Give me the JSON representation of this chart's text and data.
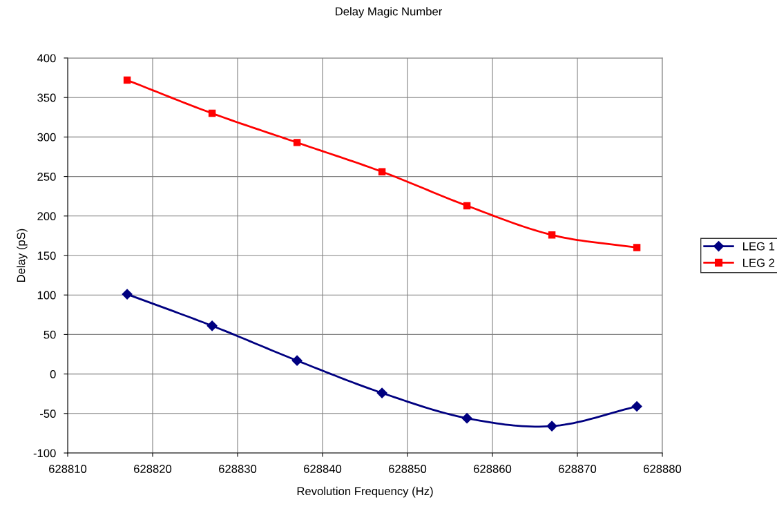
{
  "chart_data": {
    "type": "line",
    "title": "Delay Magic Number",
    "xlabel": "Revolution Frequency (Hz)",
    "ylabel": "Delay (pS)",
    "x": [
      628817,
      628827,
      628837,
      628847,
      628857,
      628867,
      628877
    ],
    "series": [
      {
        "name": "LEG 1",
        "color": "#000080",
        "marker": "diamond",
        "values": [
          101,
          61,
          17,
          -24,
          -56,
          -66,
          -41
        ]
      },
      {
        "name": "LEG 2",
        "color": "#ff0000",
        "marker": "square",
        "values": [
          372,
          330,
          293,
          256,
          213,
          176,
          160
        ]
      }
    ],
    "xlim": [
      628810,
      628880
    ],
    "xticks": [
      628810,
      628820,
      628830,
      628840,
      628850,
      628860,
      628870,
      628880
    ],
    "ylim": [
      -100,
      400
    ],
    "yticks": [
      -100,
      -50,
      0,
      50,
      100,
      150,
      200,
      250,
      300,
      350,
      400
    ],
    "grid": true,
    "legend": "right",
    "line_style": "solid"
  }
}
